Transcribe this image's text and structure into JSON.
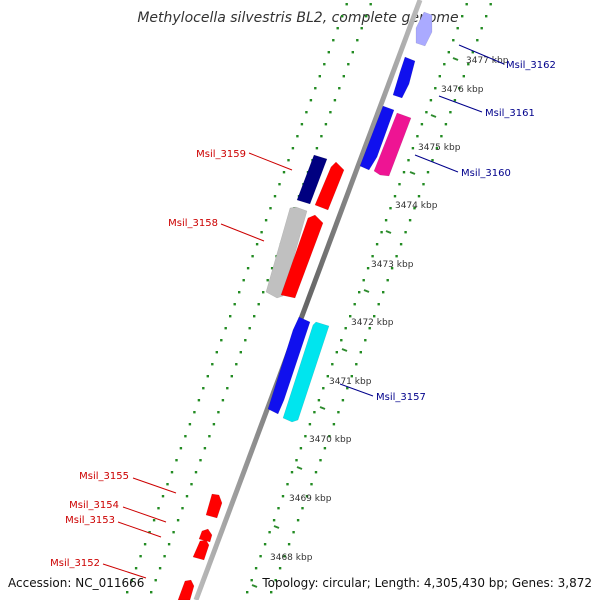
{
  "title": "Methylocella silvestris BL2, complete genome",
  "footer": {
    "accession": "Accession: NC_011666",
    "summary": "Topology: circular; Length: 4,305,430 bp; Genes: 3,872"
  },
  "colors": {
    "backbone": "#8c8c8c",
    "dots": "#228b22",
    "label_forward": "#cc0000",
    "label_reverse": "#00008b",
    "tick": "#2e8b2e"
  },
  "tick_labels": [
    "3477 kbp",
    "3476 kbp",
    "3475 kbp",
    "3474 kbp",
    "3473 kbp",
    "3472 kbp",
    "3471 kbp",
    "3470 kbp",
    "3469 kbp",
    "3468 kbp"
  ],
  "genes": [
    {
      "name": "Msil_3162",
      "strand": "reverse",
      "color": "#aaaaff"
    },
    {
      "name": "Msil_3161",
      "strand": "reverse",
      "color": "#1010ee"
    },
    {
      "name": "Msil_3160",
      "strand": "reverse",
      "color": "#ee1493"
    },
    {
      "name": "Msil_3159",
      "strand": "forward",
      "color": "#000080"
    },
    {
      "name": "Msil_3158",
      "strand": "forward",
      "color": "#c0c0c0"
    },
    {
      "name": "Msil_3157",
      "strand": "reverse",
      "color": "#00e5ee"
    },
    {
      "name": "Msil_3155",
      "strand": "forward",
      "color": "#ff0000"
    },
    {
      "name": "Msil_3154",
      "strand": "forward",
      "color": "#ff0000"
    },
    {
      "name": "Msil_3153",
      "strand": "forward",
      "color": "#ff0000"
    },
    {
      "name": "Msil_3152",
      "strand": "forward",
      "color": "#ff0000"
    }
  ]
}
